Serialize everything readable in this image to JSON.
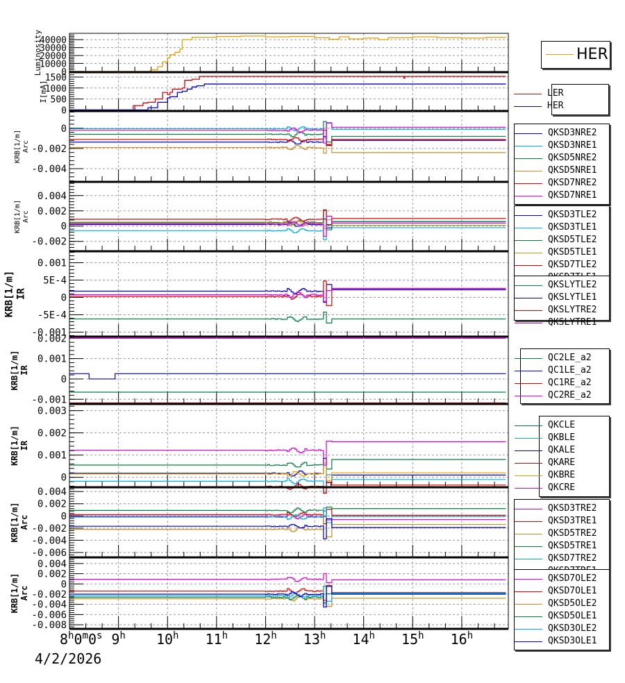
{
  "chart_data": {
    "type": "line",
    "title": "",
    "x_axis": {
      "unit": "hours",
      "range": [
        8.0,
        16.95
      ],
      "tick_labels": [
        {
          "value": 8,
          "label": "8",
          "sup": "h",
          "mid": "0",
          "sup2": "m",
          "end": "0",
          "sup3": "s"
        },
        {
          "value": 9,
          "label": "9",
          "sup": "h"
        },
        {
          "value": 10,
          "label": "10",
          "sup": "h"
        },
        {
          "value": 11,
          "label": "11",
          "sup": "h"
        },
        {
          "value": 12,
          "label": "12",
          "sup": "h"
        },
        {
          "value": 13,
          "label": "13",
          "sup": "h"
        },
        {
          "value": 14,
          "label": "14",
          "sup": "h"
        },
        {
          "value": 15,
          "label": "15",
          "sup": "h"
        },
        {
          "value": 16,
          "label": "16",
          "sup": "h"
        }
      ],
      "date_label": "4/2/2026"
    },
    "grid": true,
    "panels": [
      {
        "id": "luminosity",
        "ylabel": [
          "Luminosity"
        ],
        "ylim": [
          -1000,
          48000
        ],
        "yticks": [
          0,
          10000,
          20000,
          30000,
          40000
        ],
        "ytick_labels": [
          "0",
          "10000",
          "20000",
          "30000",
          "40000"
        ],
        "legend_position": "right",
        "series": [
          {
            "name": "HER",
            "color": "#e0a000",
            "points": [
              [
                8.0,
                0
              ],
              [
                9.6,
                0
              ],
              [
                9.65,
                2000
              ],
              [
                9.8,
                6000
              ],
              [
                9.9,
                12000
              ],
              [
                10.0,
                17000
              ],
              [
                10.05,
                21000
              ],
              [
                10.15,
                24000
              ],
              [
                10.25,
                28000
              ],
              [
                10.3,
                40000
              ],
              [
                10.5,
                43000
              ],
              [
                11.0,
                44000
              ],
              [
                11.5,
                44500
              ],
              [
                12.0,
                43500
              ],
              [
                12.5,
                44000
              ],
              [
                13.0,
                42500
              ],
              [
                13.3,
                40500
              ],
              [
                13.5,
                43500
              ],
              [
                13.7,
                41000
              ],
              [
                14.0,
                42000
              ],
              [
                14.3,
                40000
              ],
              [
                14.5,
                42500
              ],
              [
                15.0,
                43500
              ],
              [
                15.5,
                42500
              ],
              [
                16.0,
                42000
              ],
              [
                16.5,
                43000
              ],
              [
                16.9,
                42500
              ]
            ]
          }
        ]
      },
      {
        "id": "current",
        "ylabel": [
          "I[mA]"
        ],
        "ylim": [
          -50,
          1720
        ],
        "yticks": [
          0,
          500,
          1000,
          1500
        ],
        "ytick_labels": [
          "0",
          "500",
          "1000",
          "1500"
        ],
        "legend_position": "right",
        "series": [
          {
            "name": "LER",
            "color": "#dd0000",
            "points": [
              [
                8.0,
                0
              ],
              [
                9.0,
                0
              ],
              [
                9.3,
                200
              ],
              [
                9.5,
                320
              ],
              [
                9.6,
                350
              ],
              [
                9.75,
                500
              ],
              [
                9.9,
                800
              ],
              [
                10.0,
                700
              ],
              [
                10.05,
                800
              ],
              [
                10.1,
                950
              ],
              [
                10.3,
                1000
              ],
              [
                10.35,
                1350
              ],
              [
                10.5,
                1400
              ],
              [
                10.65,
                1530
              ],
              [
                10.8,
                1530
              ],
              [
                14.8,
                1530
              ],
              [
                14.82,
                1450
              ],
              [
                14.84,
                1530
              ],
              [
                16.9,
                1530
              ]
            ]
          },
          {
            "name": "HER",
            "color": "#0000cc",
            "points": [
              [
                8.0,
                0
              ],
              [
                9.5,
                0
              ],
              [
                9.6,
                100
              ],
              [
                9.8,
                350
              ],
              [
                10.0,
                550
              ],
              [
                10.05,
                600
              ],
              [
                10.2,
                800
              ],
              [
                10.3,
                850
              ],
              [
                10.4,
                950
              ],
              [
                10.5,
                1050
              ],
              [
                10.6,
                1100
              ],
              [
                10.75,
                1180
              ],
              [
                14.8,
                1180
              ],
              [
                16.9,
                1180
              ]
            ]
          }
        ]
      },
      {
        "id": "arc1",
        "ylabel": [
          "KRB[1/m]",
          "Arc"
        ],
        "ylim": [
          -0.0053,
          0.0017
        ],
        "yticks": [
          -0.004,
          -0.002,
          0
        ],
        "ytick_labels": [
          "-0.004",
          "-0.002",
          "0"
        ],
        "legend_position": "right",
        "series": [
          {
            "name": "QKSD3NRE2",
            "color": "#0000cc",
            "base": -0.00137,
            "after": -0.0012
          },
          {
            "name": "QKSD3NRE1",
            "color": "#00b0e0",
            "base": -5e-05,
            "after": -0.0001
          },
          {
            "name": "QKSD5NRE2",
            "color": "#008040",
            "base": -0.0006,
            "after": -0.0008
          },
          {
            "name": "QKSD5NRE1",
            "color": "#c89020",
            "base": -0.0019,
            "after": -0.0024
          },
          {
            "name": "QKSD7NRE2",
            "color": "#dd0000",
            "base": -0.0011,
            "after": -0.0011
          },
          {
            "name": "QKSD7NRE1",
            "color": "#dd00dd",
            "base": -0.0002,
            "after": 0.0001
          }
        ]
      },
      {
        "id": "arc2",
        "ylabel": [
          "KRB[1/m]",
          "Arc"
        ],
        "ylim": [
          -0.0033,
          0.0058
        ],
        "yticks": [
          -0.002,
          0,
          0.002,
          0.004
        ],
        "ytick_labels": [
          "-0.002",
          "0",
          "0.002",
          "0.004"
        ],
        "legend_position": "right",
        "series": [
          {
            "name": "QKSD3TLE2",
            "color": "#0000cc",
            "base": 0.0002,
            "after": 0.0006
          },
          {
            "name": "QKSD3TLE1",
            "color": "#00b0e0",
            "base": -0.0006,
            "after": -0.0002
          },
          {
            "name": "QKSD5TLE2",
            "color": "#008040",
            "base": 0.0005,
            "after": 0.0006
          },
          {
            "name": "QKSD5TLE1",
            "color": "#c89020",
            "base": 0.0004,
            "after": 0.0001
          },
          {
            "name": "QKSD7TLE2",
            "color": "#dd0000",
            "base": 0.0009,
            "after": 0.001
          },
          {
            "name": "QKSD7TLE1",
            "color": "#dd00dd",
            "base": 0.0003,
            "after": 0.0004
          }
        ]
      },
      {
        "id": "ir1",
        "ylabel": [
          "KRB[1/m]",
          "IR"
        ],
        "ylim": [
          -0.00113,
          0.00133
        ],
        "yticks": [
          -0.001,
          -0.0005,
          0,
          0.0005,
          0.001
        ],
        "ytick_labels": [
          "-0.001",
          "-5E-4",
          "0",
          "5E-4",
          "0.001"
        ],
        "legend_position": "right",
        "series": [
          {
            "name": "QKSLYTLE2",
            "color": "#008040",
            "base": -0.00062,
            "after": -0.00062
          },
          {
            "name": "QKSLYTLE1",
            "color": "#0000cc",
            "base": 0.00018,
            "after": 0.00022
          },
          {
            "name": "QKSLYTRE2",
            "color": "#dd0000",
            "base": 3e-05,
            "after": 0.00026
          },
          {
            "name": "QKSLYTRE1",
            "color": "#dd00dd",
            "base": 8e-05,
            "after": 0.00025
          }
        ]
      },
      {
        "id": "ir2",
        "ylabel": [
          "KRB[1/m]",
          "IR"
        ],
        "ylim": [
          -0.00123,
          0.00208
        ],
        "yticks": [
          -0.001,
          0,
          0.001,
          0.002
        ],
        "ytick_labels": [
          "-0.001",
          "0",
          "0.001",
          "0.002"
        ],
        "legend_position": "right",
        "series": [
          {
            "name": "QC2LE_a2",
            "color": "#008040",
            "base": -0.00065,
            "after": -0.00065
          },
          {
            "name": "QC1LE_a2",
            "color": "#0000cc",
            "base": 0.00026,
            "after": 0.00026,
            "dip": [
              8.4,
              8.93,
              0.0
            ]
          },
          {
            "name": "QC1RE_a2",
            "color": "#dd0000",
            "base": -0.00118,
            "after": -0.00118
          },
          {
            "name": "QC2RE_a2",
            "color": "#dd00dd",
            "base": 0.002,
            "after": 0.002
          }
        ]
      },
      {
        "id": "ir3",
        "ylabel": [
          "KRB[1/m]",
          "IR"
        ],
        "ylim": [
          -0.00045,
          0.0033
        ],
        "yticks": [
          0,
          0.001,
          0.002,
          0.003
        ],
        "ytick_labels": [
          "0",
          "0.001",
          "0.002",
          "0.003"
        ],
        "legend_position": "right",
        "series": [
          {
            "name": "QKCLE",
            "color": "#008040",
            "base": 0.00055,
            "after": 0.0008
          },
          {
            "name": "QKBLE",
            "color": "#00b0e0",
            "base": -0.00018,
            "after": -0.0001
          },
          {
            "name": "QKALE",
            "color": "#0000cc",
            "base": 0.00018,
            "after": 0.0001
          },
          {
            "name": "QKARE",
            "color": "#dd0000",
            "base": -0.00042,
            "after": -0.00035
          },
          {
            "name": "QKBRE",
            "color": "#e0a000",
            "base": 0.00015,
            "after": 0.0002
          },
          {
            "name": "QKCRE",
            "color": "#dd00dd",
            "base": 0.00122,
            "after": 0.0016
          }
        ]
      },
      {
        "id": "arc3",
        "ylabel": [
          "KRB[1/m]",
          "Arc"
        ],
        "ylim": [
          -0.0068,
          0.0047
        ],
        "yticks": [
          -0.006,
          -0.004,
          -0.002,
          0,
          0.002,
          0.004
        ],
        "ytick_labels": [
          "-0.006",
          "-0.004",
          "-0.002",
          "0",
          "0.002",
          "0.004"
        ],
        "legend_position": "right",
        "series": [
          {
            "name": "QKSD3TRE2",
            "color": "#dd00dd",
            "base": -0.0001,
            "after": -0.0006
          },
          {
            "name": "QKSD3TRE1",
            "color": "#dd0000",
            "base": 0.0002,
            "after": 0.0001
          },
          {
            "name": "QKSD5TRE2",
            "color": "#c89020",
            "base": -0.0022,
            "after": -0.0014
          },
          {
            "name": "QKSD5TRE1",
            "color": "#008040",
            "base": 0.0009,
            "after": 0.0012
          },
          {
            "name": "QKSD7TRE2",
            "color": "#00b0e0",
            "base": -0.0002,
            "after": -0.0001
          },
          {
            "name": "QKSD7TRE1",
            "color": "#0000cc",
            "base": -0.0017,
            "after": -0.0019
          }
        ]
      },
      {
        "id": "arc4",
        "ylabel": [
          "KRB[1/m]",
          "Arc"
        ],
        "ylim": [
          -0.0088,
          0.0052
        ],
        "yticks": [
          -0.008,
          -0.006,
          -0.004,
          -0.002,
          0,
          0.002,
          0.004
        ],
        "ytick_labels": [
          "-0.008",
          "-0.006",
          "-0.004",
          "-0.002",
          "0",
          "0.002",
          "0.004"
        ],
        "legend_position": "right",
        "series": [
          {
            "name": "QKSD7OLE2",
            "color": "#dd00dd",
            "base": 0.0009,
            "after": 0.0008
          },
          {
            "name": "QKSD7OLE1",
            "color": "#dd0000",
            "base": -0.0014,
            "after": -0.0017
          },
          {
            "name": "QKSD5OLE2",
            "color": "#c89020",
            "base": -0.0029,
            "after": -0.0028
          },
          {
            "name": "QKSD5OLE1",
            "color": "#008040",
            "base": -0.0026,
            "after": -0.0019
          },
          {
            "name": "QKSD3OLE2",
            "color": "#00b0e0",
            "base": -0.0023,
            "after": -0.0018
          },
          {
            "name": "QKSD3OLE1",
            "color": "#0000cc",
            "base": -0.002,
            "after": -0.002
          }
        ]
      }
    ],
    "disturbance_window_hours": [
      12.0,
      13.35
    ],
    "step_time_hours": 13.35
  }
}
